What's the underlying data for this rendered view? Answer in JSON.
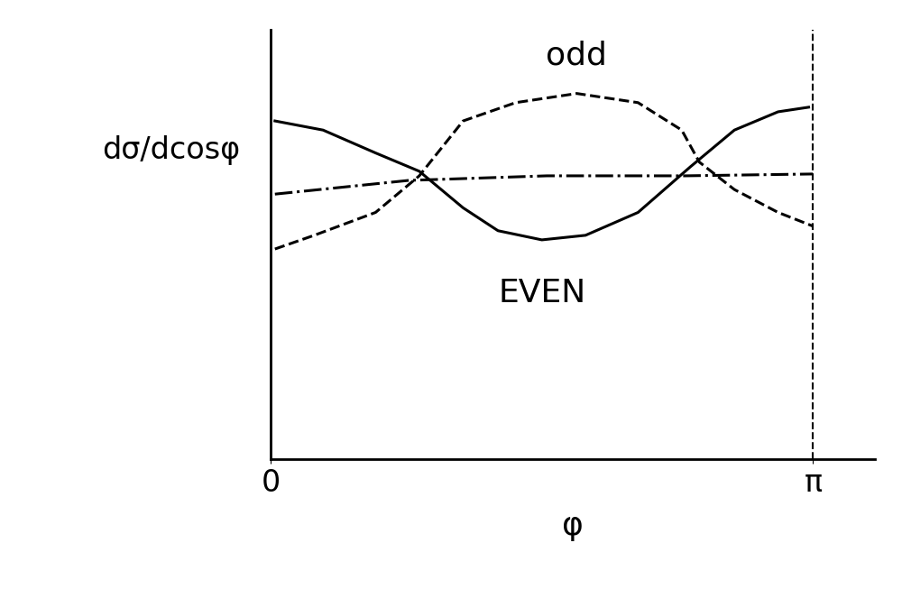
{
  "chart_data": {
    "type": "line",
    "y_label": "dσ/dcosφ",
    "x_label": "φ",
    "xlim": [
      0,
      3.5
    ],
    "xticks": [
      0,
      {
        "value": 3.1416,
        "label": "π"
      }
    ],
    "ylim": [
      0,
      4.7
    ],
    "yticks": [],
    "tick_labels": "x",
    "grid": false,
    "series": [
      {
        "name": "EVEN",
        "color": "#000000",
        "line_style": "solid",
        "x": [
          0.025,
          0.304,
          0.608,
          0.861,
          1.115,
          1.317,
          1.571,
          1.824,
          2.128,
          2.432,
          2.686,
          2.939,
          3.116
        ],
        "values": [
          3.7,
          3.6,
          3.35,
          3.15,
          2.75,
          2.5,
          2.4,
          2.45,
          2.7,
          3.2,
          3.6,
          3.8,
          3.85
        ]
      },
      {
        "name": "odd",
        "color": "#000000",
        "line_style": "dashed",
        "x": [
          0.025,
          0.253,
          0.608,
          0.861,
          1.115,
          1.419,
          1.773,
          2.128,
          2.381,
          2.483,
          2.686,
          2.939,
          3.141
        ],
        "values": [
          2.3,
          2.45,
          2.7,
          3.1,
          3.7,
          3.9,
          4.0,
          3.9,
          3.6,
          3.25,
          2.95,
          2.7,
          2.55
        ]
      },
      {
        "color": "#000000",
        "line_style": "dashdot",
        "x": [
          0.025,
          0.8,
          1.6,
          2.4,
          3.14
        ],
        "values": [
          2.9,
          3.05,
          3.1,
          3.1,
          3.12
        ]
      }
    ]
  }
}
